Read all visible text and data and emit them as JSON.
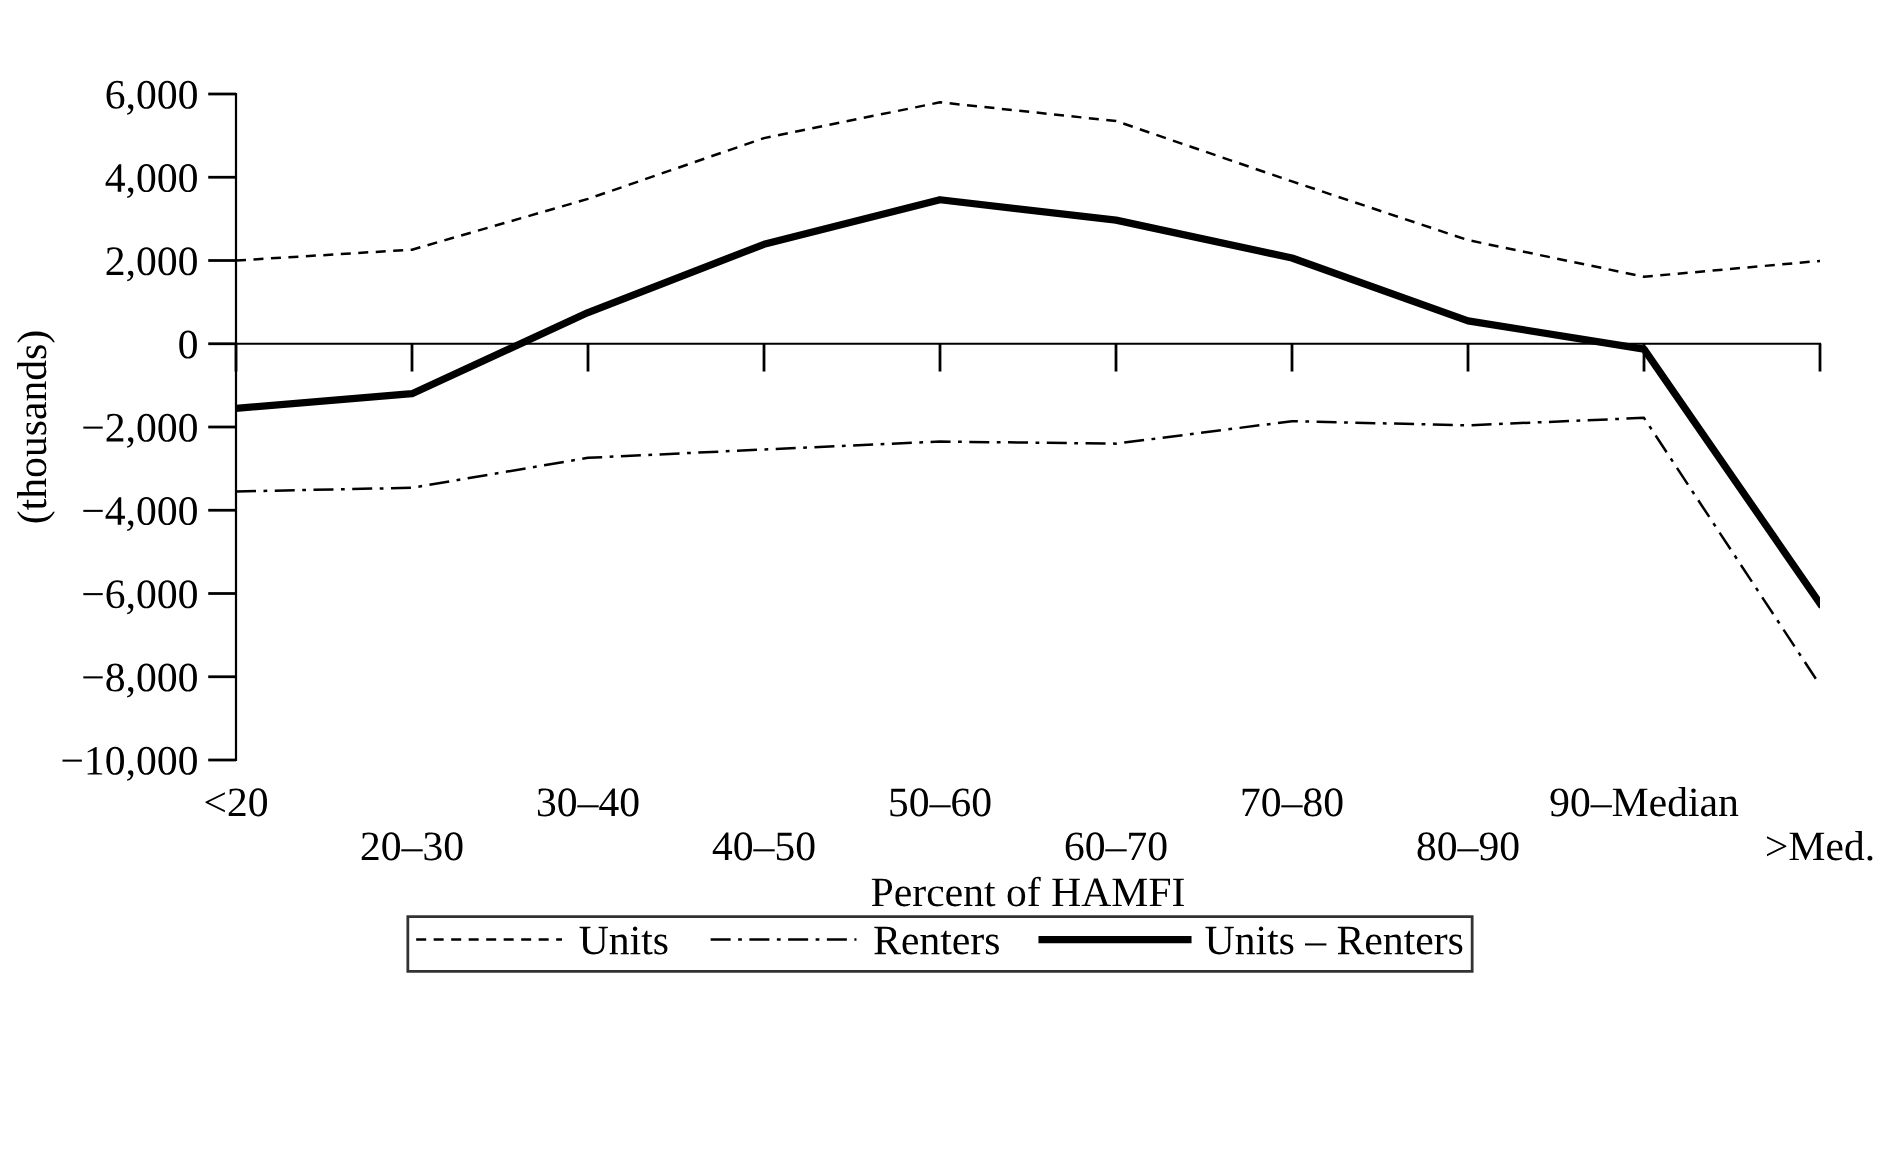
{
  "chart_data": {
    "type": "line",
    "xlabel": "Percent of HAMFI",
    "ylabel": "(thousands)",
    "categories": [
      "<20",
      "20–30",
      "30–40",
      "40–50",
      "50–60",
      "60–70",
      "70–80",
      "80–90",
      "90–Median",
      ">Med."
    ],
    "series": [
      {
        "name": "Units",
        "color": "#000000",
        "line_style": "dashed",
        "values": [
          2000,
          2260,
          3480,
          4940,
          5800,
          5350,
          3900,
          2490,
          1610,
          1990
        ]
      },
      {
        "name": "Renters",
        "color": "#000000",
        "line_style": "dashdot",
        "values": [
          -3550,
          -3460,
          -2740,
          -2540,
          -2350,
          -2400,
          -1860,
          -1960,
          -1780,
          -8200
        ]
      },
      {
        "name": "Units – Renters",
        "color": "#000000",
        "line_style": "solid",
        "values": [
          -1550,
          -1200,
          750,
          2390,
          3460,
          2970,
          2060,
          550,
          -130,
          -6240
        ]
      }
    ],
    "ylim": [
      -10000,
      6000
    ],
    "yticks": [
      {
        "value": 6000,
        "label": "6,000"
      },
      {
        "value": 4000,
        "label": "4,000"
      },
      {
        "value": 2000,
        "label": "2,000"
      },
      0,
      {
        "value": -2000,
        "label": "−2,000"
      },
      {
        "value": -4000,
        "label": "−4,000"
      },
      {
        "value": -6000,
        "label": "−6,000"
      },
      {
        "value": -8000,
        "label": "−8,000"
      },
      {
        "value": -10000,
        "label": "−10,000"
      }
    ],
    "legend": "bottom",
    "marker": "none"
  }
}
